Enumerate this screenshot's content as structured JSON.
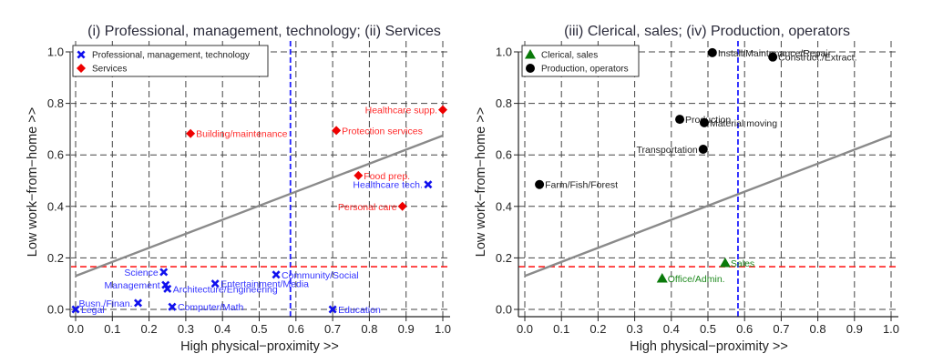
{
  "chart_data": [
    {
      "type": "scatter",
      "title": "(i) Professional, management, technology; (ii) Services",
      "xlabel": "High physical−proximity >>",
      "ylabel": "Low work−from−home >>",
      "xlim": [
        0,
        1
      ],
      "ylim": [
        0,
        1
      ],
      "xticks": [
        "0.0",
        "0.1",
        "0.2",
        "0.3",
        "0.4",
        "0.5",
        "0.6",
        "0.7",
        "0.8",
        "0.9",
        "1.0"
      ],
      "yticks": [
        "0.0",
        "0.2",
        "0.4",
        "0.6",
        "0.8",
        "1.0"
      ],
      "grid": true,
      "legend_position": "top-left",
      "y_spine_color": "#8c8c8c",
      "reference_lines": {
        "vertical_x": 0.585,
        "vertical_color": "#1f1fff",
        "horizontal_y": 0.166,
        "horizontal_color": "#ff2020",
        "fit_line": {
          "x0": 0,
          "y0": 0.13,
          "x1": 1,
          "y1": 0.675,
          "color": "#8a8a8a"
        }
      },
      "series": [
        {
          "name": "Professional, management, technology",
          "marker": "x",
          "color": "#1010ee",
          "label_color": "#3333ff",
          "points": [
            {
              "label": "Legal",
              "x": 0.0,
              "y": 0.0,
              "side": "right"
            },
            {
              "label": "Busn./Finan.",
              "x": 0.17,
              "y": 0.025,
              "side": "left"
            },
            {
              "label": "Science",
              "x": 0.24,
              "y": 0.145,
              "side": "left"
            },
            {
              "label": "Management",
              "x": 0.245,
              "y": 0.095,
              "side": "left"
            },
            {
              "label": "Architecture/Engineering",
              "x": 0.25,
              "y": 0.08,
              "side": "right"
            },
            {
              "label": "Computer/Math",
              "x": 0.263,
              "y": 0.01,
              "side": "right"
            },
            {
              "label": "Entertainment/Media",
              "x": 0.38,
              "y": 0.1,
              "side": "right"
            },
            {
              "label": "Community/Social",
              "x": 0.546,
              "y": 0.135,
              "side": "right"
            },
            {
              "label": "Education",
              "x": 0.7,
              "y": 0.0,
              "side": "right"
            },
            {
              "label": "Healthcare tech.",
              "x": 0.96,
              "y": 0.485,
              "side": "left"
            }
          ]
        },
        {
          "name": "Services",
          "marker": "diamond",
          "color": "#ee0000",
          "label_color": "#ff2a2a",
          "points": [
            {
              "label": "Building/maintenance",
              "x": 0.313,
              "y": 0.683,
              "side": "right"
            },
            {
              "label": "Protection services",
              "x": 0.71,
              "y": 0.695,
              "side": "right"
            },
            {
              "label": "Food prep.",
              "x": 0.77,
              "y": 0.52,
              "side": "right"
            },
            {
              "label": "Personal care",
              "x": 0.89,
              "y": 0.4,
              "side": "left"
            },
            {
              "label": "Healthcare supp.",
              "x": 1.0,
              "y": 0.775,
              "side": "left"
            }
          ]
        }
      ]
    },
    {
      "type": "scatter",
      "title": "(iii) Clerical, sales; (iv) Production, operators",
      "xlabel": "High physical−proximity >>",
      "ylabel": "Low work−from−home >>",
      "xlim": [
        0,
        1
      ],
      "ylim": [
        0,
        1
      ],
      "xticks": [
        "0.0",
        "0.1",
        "0.2",
        "0.3",
        "0.4",
        "0.5",
        "0.6",
        "0.7",
        "0.8",
        "0.9",
        "1.0"
      ],
      "yticks": [
        "0.0",
        "0.2",
        "0.4",
        "0.6",
        "0.8",
        "1.0"
      ],
      "grid": true,
      "legend_position": "top-left",
      "y_spine_color": "#222222",
      "reference_lines": {
        "vertical_x": 0.582,
        "vertical_color": "#1f1fff",
        "horizontal_y": 0.166,
        "horizontal_color": "#ff2020",
        "fit_line": {
          "x0": 0,
          "y0": 0.13,
          "x1": 1,
          "y1": 0.675,
          "color": "#8a8a8a"
        }
      },
      "series": [
        {
          "name": "Clerical, sales",
          "marker": "triangle",
          "color": "#0a7a0a",
          "label_color": "#1f8a1f",
          "points": [
            {
              "label": "Office/Admin.",
              "x": 0.375,
              "y": 0.12,
              "side": "right"
            },
            {
              "label": "Sales",
              "x": 0.547,
              "y": 0.18,
              "side": "right"
            }
          ]
        },
        {
          "name": "Production, operators",
          "marker": "circle",
          "color": "#000000",
          "label_color": "#222222",
          "points": [
            {
              "label": "Farm/Fish/Forest",
              "x": 0.04,
              "y": 0.485,
              "side": "right"
            },
            {
              "label": "Production",
              "x": 0.423,
              "y": 0.738,
              "side": "right"
            },
            {
              "label": "Transportation",
              "x": 0.487,
              "y": 0.622,
              "side": "left"
            },
            {
              "label": "Material moving",
              "x": 0.49,
              "y": 0.725,
              "side": "right"
            },
            {
              "label": "Install/Maintenance/Repair",
              "x": 0.512,
              "y": 0.997,
              "side": "right"
            },
            {
              "label": "Construct./Extract.",
              "x": 0.677,
              "y": 0.98,
              "side": "right"
            }
          ]
        }
      ]
    }
  ]
}
